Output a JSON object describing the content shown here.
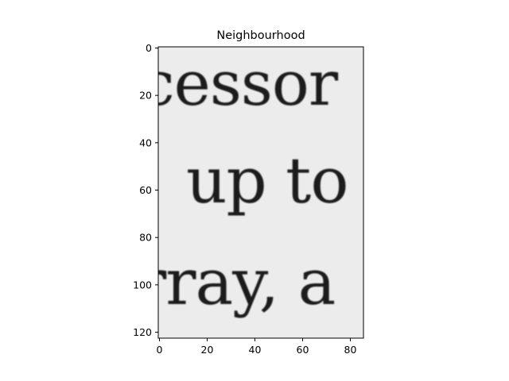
{
  "chart_data": {
    "type": "image",
    "title": "Neighbourhood",
    "xlabel": "",
    "ylabel": "",
    "xlim": [
      -0.5,
      85.5
    ],
    "ylim": [
      122.5,
      -0.5
    ],
    "x_ticks": [
      0,
      20,
      40,
      60,
      80
    ],
    "y_ticks": [
      0,
      20,
      40,
      60,
      80,
      100,
      120
    ],
    "grid": false,
    "legend": "none",
    "colormap": "gray",
    "image_text_lines": [
      "cessor",
      "up to",
      "rray, a"
    ]
  },
  "colors": {
    "paper": "#ececec",
    "ink": "#1c1c1c",
    "axes": "#000000"
  }
}
